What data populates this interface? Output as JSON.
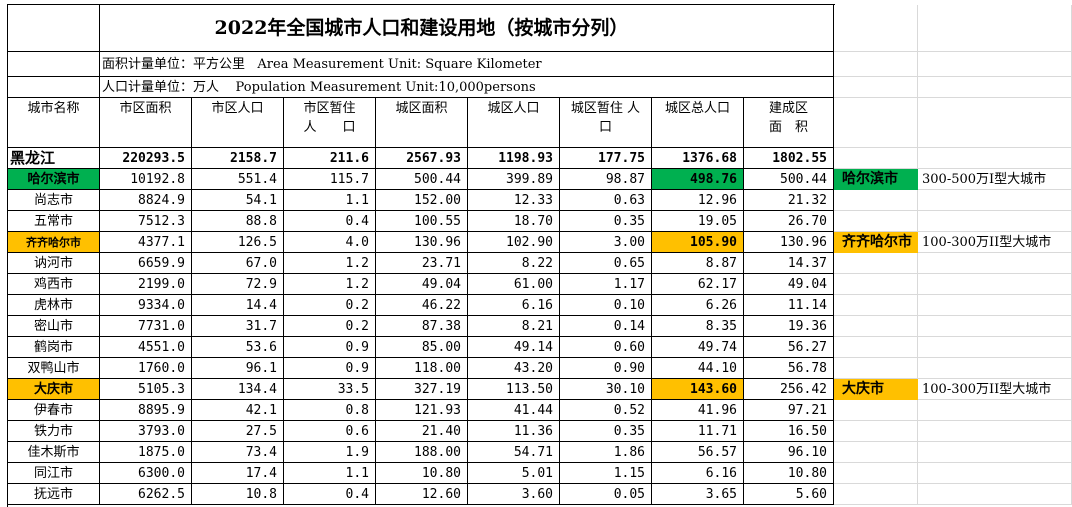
{
  "title": "2022年全国城市人口和建设用地（按城市分列）",
  "area_unit": "面积计量单位：平方公里   Area Measurement Unit: Square Kilometer",
  "population_unit": "人口计量单位：万人    Population Measurement Unit:10,000persons",
  "headers": [
    "城市名称",
    "市区面积",
    "市区人口",
    "市区暂住\n人　　口",
    "城区面积",
    "城区人口",
    "城区暂住 人\n口",
    "城区总人口",
    "建成区\n面　积"
  ],
  "rows": [
    {
      "city": "黑龙江",
      "values": [
        "220293.5",
        "2158.7",
        "211.6",
        "2567.93",
        "1198.93",
        "177.75",
        "1376.68",
        "1802.55"
      ]
    },
    {
      "city": "哈尔滨市",
      "color": "#00b050",
      "values": [
        "10192.8",
        "551.4",
        "115.7",
        "500.44",
        "399.89",
        "98.87",
        "498.76",
        "500.44"
      ],
      "note": {
        "label": "哈尔滨市",
        "class": "300-500万I型大城市"
      }
    },
    {
      "city": "尚志市",
      "values": [
        "8824.9",
        "54.1",
        "1.1",
        "152.00",
        "12.33",
        "0.63",
        "12.96",
        "21.32"
      ]
    },
    {
      "city": "五常市",
      "values": [
        "7512.3",
        "88.8",
        "0.4",
        "100.55",
        "18.70",
        "0.35",
        "19.05",
        "26.70"
      ]
    },
    {
      "city": "齐齐哈尔市",
      "color": "#ffc000",
      "values": [
        "4377.1",
        "126.5",
        "4.0",
        "130.96",
        "102.90",
        "3.00",
        "105.90",
        "130.96"
      ],
      "note": {
        "label": "齐齐哈尔市",
        "class": "100-300万II型大城市"
      }
    },
    {
      "city": "讷河市",
      "values": [
        "6659.9",
        "67.0",
        "1.2",
        "23.71",
        "8.22",
        "0.65",
        "8.87",
        "14.37"
      ]
    },
    {
      "city": "鸡西市",
      "values": [
        "2199.0",
        "72.9",
        "1.2",
        "49.04",
        "61.00",
        "1.17",
        "62.17",
        "49.04"
      ]
    },
    {
      "city": "虎林市",
      "values": [
        "9334.0",
        "14.4",
        "0.2",
        "46.22",
        "6.16",
        "0.10",
        "6.26",
        "11.14"
      ]
    },
    {
      "city": "密山市",
      "values": [
        "7731.0",
        "31.7",
        "0.2",
        "87.38",
        "8.21",
        "0.14",
        "8.35",
        "19.36"
      ]
    },
    {
      "city": "鹤岗市",
      "values": [
        "4551.0",
        "53.6",
        "0.9",
        "85.00",
        "49.14",
        "0.60",
        "49.74",
        "56.27"
      ]
    },
    {
      "city": "双鸭山市",
      "values": [
        "1760.0",
        "96.1",
        "0.9",
        "118.00",
        "43.20",
        "0.90",
        "44.10",
        "56.78"
      ]
    },
    {
      "city": "大庆市",
      "color": "#ffc000",
      "values": [
        "5105.3",
        "134.4",
        "33.5",
        "327.19",
        "113.50",
        "30.10",
        "143.60",
        "256.42"
      ],
      "note": {
        "label": "大庆市",
        "class": "100-300万II型大城市"
      }
    },
    {
      "city": "伊春市",
      "values": [
        "8895.9",
        "42.1",
        "0.8",
        "121.93",
        "41.44",
        "0.52",
        "41.96",
        "97.21"
      ]
    },
    {
      "city": "铁力市",
      "values": [
        "3793.0",
        "27.5",
        "0.6",
        "21.40",
        "11.36",
        "0.35",
        "11.71",
        "16.50"
      ]
    },
    {
      "city": "佳木斯市",
      "values": [
        "1875.0",
        "73.4",
        "1.9",
        "188.00",
        "54.71",
        "1.86",
        "56.57",
        "96.10"
      ]
    },
    {
      "city": "同江市",
      "values": [
        "6300.0",
        "17.4",
        "1.1",
        "10.80",
        "5.01",
        "1.15",
        "6.16",
        "10.80"
      ]
    },
    {
      "city": "抚远市",
      "values": [
        "6262.5",
        "10.8",
        "0.4",
        "12.60",
        "3.60",
        "0.05",
        "3.65",
        "5.60"
      ]
    }
  ]
}
